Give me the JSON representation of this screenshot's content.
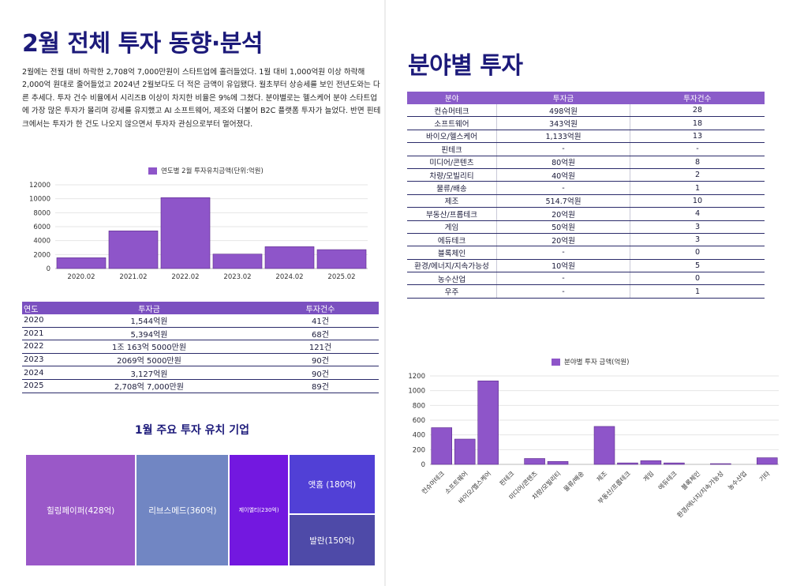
{
  "left": {
    "title": "2월 전체 투자 동향·분석",
    "intro": "2월에는 전월 대비 하락한 2,708억 7,000만원이 스타트업에 흘러들었다. 1월 대비 1,000억원 이상 하락해 2,000억 원대로 줄어들었고 2024년 2월보다도 더 적은 금액이 유입됐다. 월초부터 상승세를 보인 전년도와는 다른 추세다. 투자 건수 비율에서 시리즈B 이상이 차지한 비율은 9%에 그쳤다. 분야별로는 헬스케어 분야 스타트업에 가장 많은 투자가 몰리며 강세를 유지했고 AI 소프트웨어, 제조와 더불어 B2C 플랫폼 투자가 늘었다. 반면 핀테크에서는 투자가 한 건도 나오지 않으면서 투자자 관심으로부터 멀어졌다.",
    "year_table": {
      "headers": [
        "연도",
        "투자금",
        "투자건수"
      ],
      "rows": [
        [
          "2020",
          "1,544억원",
          "41건"
        ],
        [
          "2021",
          "5,394억원",
          "68건"
        ],
        [
          "2022",
          "1조 163억 5000만원",
          "121건"
        ],
        [
          "2023",
          "2069억 5000만원",
          "90건"
        ],
        [
          "2024",
          "3,127억원",
          "90건"
        ],
        [
          "2025",
          "2,708억 7,000만원",
          "89건"
        ]
      ]
    },
    "treemap": {
      "title": "1월 주요 투자 유치 기업",
      "tiles": [
        {
          "label": "힐링페이퍼(428억)",
          "value": 428,
          "color": "#9a58c8"
        },
        {
          "label": "리브스메드(360억)",
          "value": 360,
          "color": "#7186c3"
        },
        {
          "label": "제이엘티(230억)",
          "value": 230,
          "color": "#7318e0"
        },
        {
          "label": "앳홈 (180억)",
          "value": 180,
          "color": "#5140d6"
        },
        {
          "label": "발란(150억)",
          "value": 150,
          "color": "#4e4aa8"
        }
      ]
    }
  },
  "right": {
    "title": "분야별 투자",
    "sector_table": {
      "headers": [
        "분야",
        "투자금",
        "투자건수"
      ],
      "rows": [
        [
          "컨슈머테크",
          "498억원",
          "28"
        ],
        [
          "소프트웨어",
          "343억원",
          "18"
        ],
        [
          "바이오/헬스케어",
          "1,133억원",
          "13"
        ],
        [
          "핀테크",
          "-",
          "-"
        ],
        [
          "미디어/콘텐츠",
          "80억원",
          "8"
        ],
        [
          "차량/모빌리티",
          "40억원",
          "2"
        ],
        [
          "물류/배송",
          "-",
          "1"
        ],
        [
          "제조",
          "514.7억원",
          "10"
        ],
        [
          "부동산/프롭테크",
          "20억원",
          "4"
        ],
        [
          "게임",
          "50억원",
          "3"
        ],
        [
          "에듀테크",
          "20억원",
          "3"
        ],
        [
          "블록체인",
          "-",
          "0"
        ],
        [
          "환경/에너지/지속가능성",
          "10억원",
          "5"
        ],
        [
          "농수산업",
          "-",
          "0"
        ],
        [
          "우주",
          "-",
          "1"
        ]
      ]
    }
  },
  "chart_data": [
    {
      "type": "bar",
      "legend": "연도별 2월 투자유치금액(단위:억원)",
      "categories": [
        "2020.02",
        "2021.02",
        "2022.02",
        "2023.02",
        "2024.02",
        "2025.02"
      ],
      "values": [
        1544,
        5394,
        10163.5,
        2069.5,
        3127,
        2708.7
      ],
      "yticks": [
        0,
        2000,
        4000,
        6000,
        8000,
        10000,
        12000
      ],
      "ylim": [
        0,
        12000
      ],
      "color": "#8e55c9"
    },
    {
      "type": "bar",
      "legend": "분야별 투자 금액(억원)",
      "categories": [
        "컨슈머테크",
        "소프트웨어",
        "바이오/헬스케어",
        "핀테크",
        "미디어/콘텐츠",
        "차량/모빌리티",
        "물류/배송",
        "제조",
        "부동산/프롭테크",
        "게임",
        "에듀테크",
        "블록체인",
        "환경/에너지/지속가능성",
        "농수산업",
        "기타"
      ],
      "values": [
        498,
        343,
        1133,
        0,
        80,
        40,
        0,
        514.7,
        20,
        50,
        20,
        0,
        10,
        0,
        90
      ],
      "yticks": [
        0,
        200,
        400,
        600,
        800,
        1000,
        1200
      ],
      "ylim": [
        0,
        1200
      ],
      "color": "#8e55c9"
    }
  ]
}
